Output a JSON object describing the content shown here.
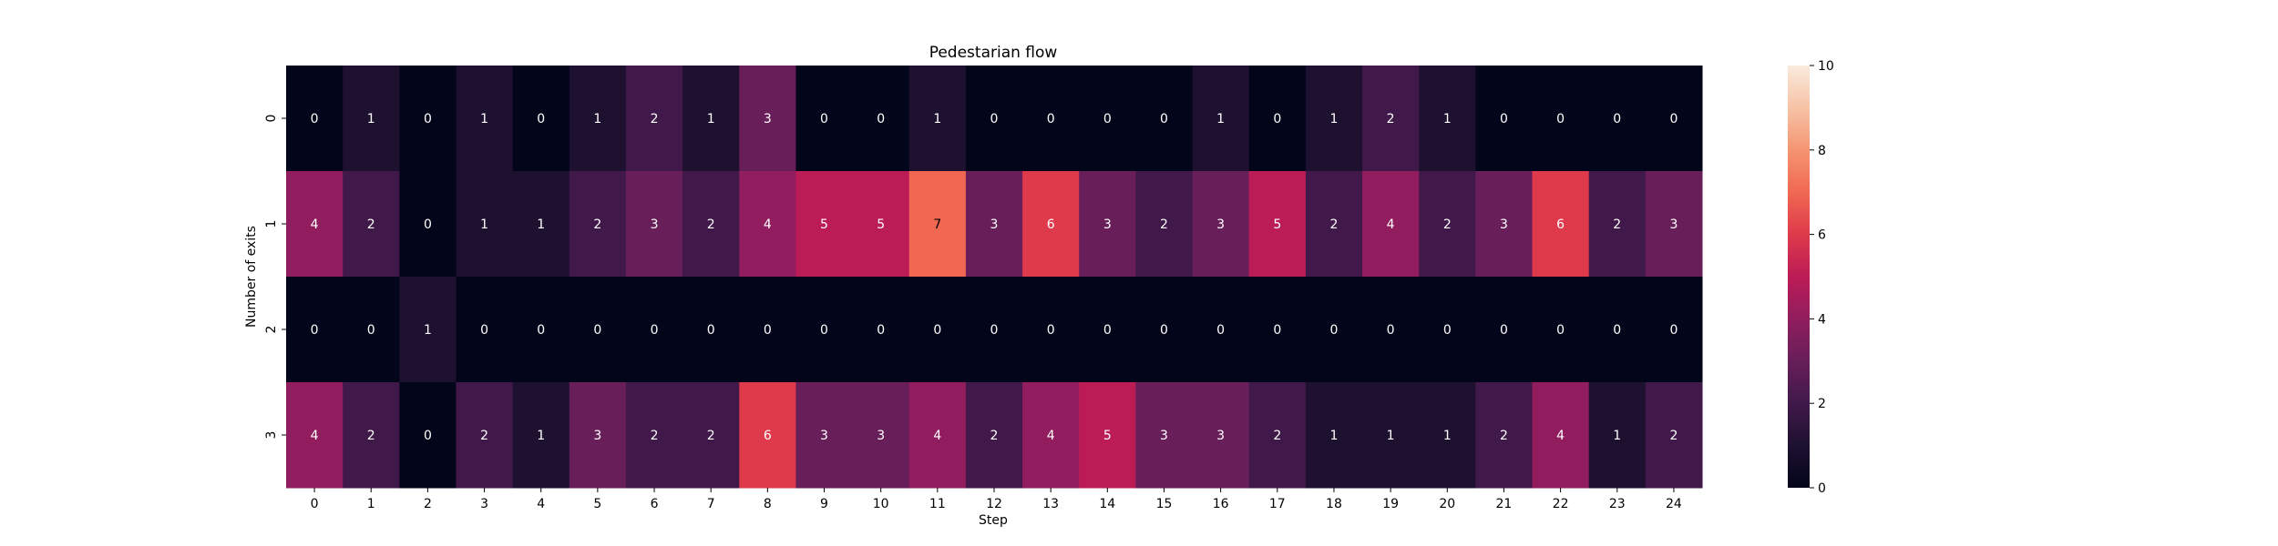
{
  "chart_data": {
    "type": "heatmap",
    "title": "Pedestarian flow",
    "xlabel": "Step",
    "ylabel": "Number of exits",
    "x_categories": [
      "0",
      "1",
      "2",
      "3",
      "4",
      "5",
      "6",
      "7",
      "8",
      "9",
      "10",
      "11",
      "12",
      "13",
      "14",
      "15",
      "16",
      "17",
      "18",
      "19",
      "20",
      "21",
      "22",
      "23",
      "24"
    ],
    "y_categories": [
      "0",
      "1",
      "2",
      "3"
    ],
    "values": [
      [
        0,
        1,
        0,
        1,
        0,
        1,
        2,
        1,
        3,
        0,
        0,
        1,
        0,
        0,
        0,
        0,
        1,
        0,
        1,
        2,
        1,
        0,
        0,
        0,
        0
      ],
      [
        4,
        2,
        0,
        1,
        1,
        2,
        3,
        2,
        4,
        5,
        5,
        7,
        3,
        6,
        3,
        2,
        3,
        5,
        2,
        4,
        2,
        3,
        6,
        2,
        3
      ],
      [
        0,
        0,
        1,
        0,
        0,
        0,
        0,
        0,
        0,
        0,
        0,
        0,
        0,
        0,
        0,
        0,
        0,
        0,
        0,
        0,
        0,
        0,
        0,
        0,
        0
      ],
      [
        4,
        2,
        0,
        2,
        1,
        3,
        2,
        2,
        6,
        3,
        3,
        4,
        2,
        4,
        5,
        3,
        3,
        2,
        1,
        1,
        1,
        2,
        4,
        1,
        2
      ]
    ],
    "annotations": true,
    "colormap": "rocket",
    "colorbar": {
      "range": [
        0,
        10
      ],
      "ticks": [
        0,
        2,
        4,
        6,
        8,
        10
      ]
    }
  }
}
